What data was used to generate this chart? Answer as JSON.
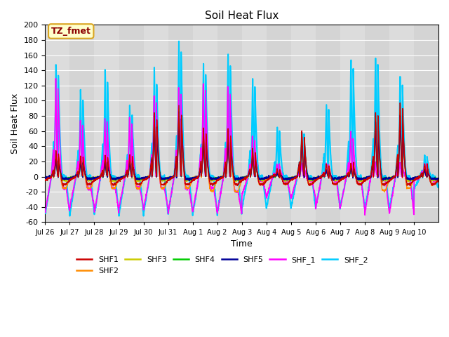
{
  "title": "Soil Heat Flux",
  "xlabel": "Time",
  "ylabel": "Soil Heat Flux",
  "ylim": [
    -60,
    200
  ],
  "yticks": [
    -60,
    -40,
    -20,
    0,
    20,
    40,
    60,
    80,
    100,
    120,
    140,
    160,
    180,
    200
  ],
  "annotation_text": "TZ_fmet",
  "annotation_color": "#8B0000",
  "annotation_bg": "#FFFFCC",
  "annotation_border": "#DAA520",
  "series": [
    "SHF1",
    "SHF2",
    "SHF3",
    "SHF4",
    "SHF5",
    "SHF_1",
    "SHF_2"
  ],
  "colors": {
    "SHF1": "#CC0000",
    "SHF2": "#FF8C00",
    "SHF3": "#CCCC00",
    "SHF4": "#00CC00",
    "SHF5": "#000099",
    "SHF_1": "#FF00FF",
    "SHF_2": "#00CCFF"
  },
  "linewidths": {
    "SHF1": 1.0,
    "SHF2": 1.0,
    "SHF3": 1.0,
    "SHF4": 1.0,
    "SHF5": 1.2,
    "SHF_1": 1.2,
    "SHF_2": 1.5
  },
  "total_days": 16,
  "tick_labels": [
    "Jul 26",
    "Jul 27",
    "Jul 28",
    "Jul 29",
    "Jul 30",
    "Jul 31",
    "Aug 1",
    "Aug 2",
    "Aug 3",
    "Aug 4",
    "Aug 5",
    "Aug 6",
    "Aug 7",
    "Aug 8",
    "Aug 9",
    "Aug 10"
  ],
  "plot_bg": "#DCDCDC",
  "bg_stripe_color": "#C8C8C8"
}
